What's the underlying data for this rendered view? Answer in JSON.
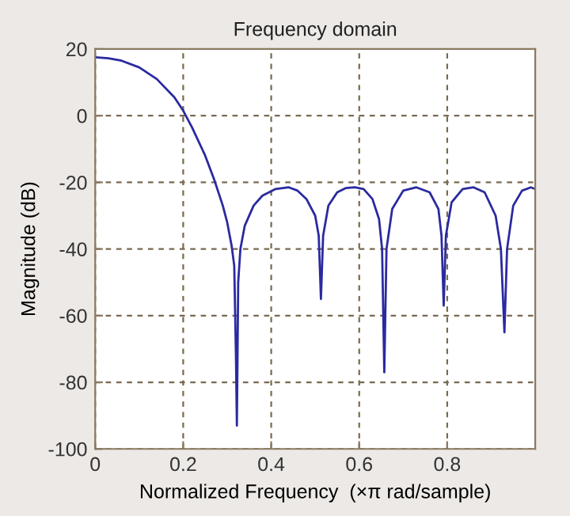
{
  "chart_data": {
    "type": "line",
    "title": "Frequency domain",
    "xlabel": "Normalized Frequency  (×π rad/sample)",
    "ylabel": "Magnitude (dB)",
    "xlim": [
      0,
      1
    ],
    "ylim": [
      -100,
      20
    ],
    "xticks": [
      0,
      0.2,
      0.4,
      0.6,
      0.8
    ],
    "yticks": [
      -100,
      -80,
      -60,
      -40,
      -20,
      0,
      20
    ],
    "grid": true,
    "line_style": "solid",
    "marker": "none",
    "series": [
      {
        "color": "#2a2aa0",
        "x": [
          0,
          0.03,
          0.06,
          0.1,
          0.14,
          0.18,
          0.2,
          0.22,
          0.25,
          0.27,
          0.29,
          0.3,
          0.31,
          0.316,
          0.32,
          0.322,
          0.325,
          0.33,
          0.34,
          0.36,
          0.38,
          0.41,
          0.44,
          0.46,
          0.48,
          0.5,
          0.508,
          0.513,
          0.518,
          0.53,
          0.55,
          0.57,
          0.59,
          0.61,
          0.63,
          0.645,
          0.652,
          0.657,
          0.662,
          0.675,
          0.7,
          0.73,
          0.76,
          0.78,
          0.787,
          0.792,
          0.797,
          0.81,
          0.835,
          0.86,
          0.885,
          0.91,
          0.922,
          0.93,
          0.936,
          0.95,
          0.97,
          0.99,
          1.0
        ],
        "values": [
          17.5,
          17.2,
          16.5,
          14.5,
          11,
          5.5,
          1.5,
          -3.5,
          -12,
          -19,
          -27,
          -32,
          -39,
          -45,
          -73,
          -93,
          -50,
          -40,
          -33,
          -27,
          -24,
          -22,
          -21.5,
          -22.5,
          -25,
          -30,
          -36,
          -55,
          -36,
          -27,
          -23,
          -21.7,
          -21.5,
          -22,
          -25,
          -31,
          -40,
          -77,
          -40,
          -28,
          -22.5,
          -21.5,
          -23,
          -28,
          -36,
          -57,
          -36,
          -26,
          -22,
          -21.5,
          -23,
          -30,
          -40,
          -65,
          -40,
          -27,
          -22.5,
          -21.5,
          -22
        ]
      }
    ]
  }
}
